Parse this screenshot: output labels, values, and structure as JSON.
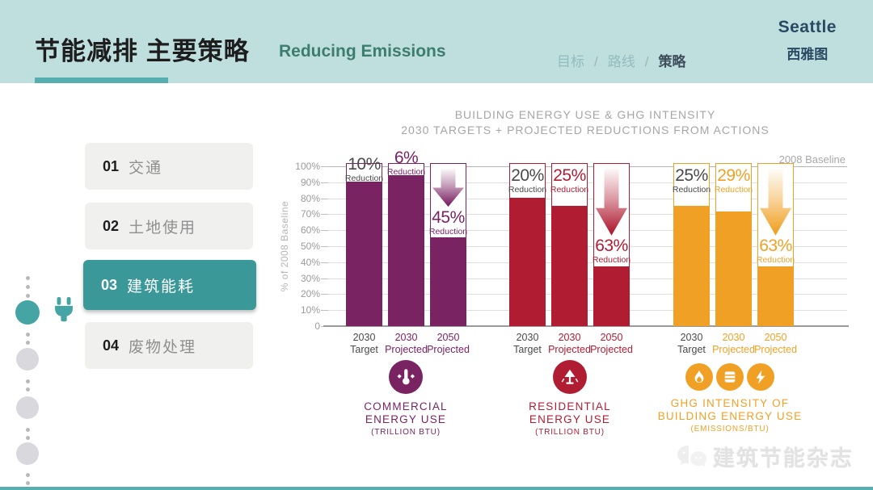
{
  "header": {
    "title_cn": "节能减排 主要策略",
    "title_en": "Reducing Emissions",
    "breadcrumb": [
      {
        "label": "目标",
        "active": false
      },
      {
        "label": "路线",
        "active": false
      },
      {
        "label": "策略",
        "active": true
      }
    ],
    "brand": {
      "name_en": "Seattle",
      "name_cn": "西雅图"
    }
  },
  "sidebar": {
    "items": [
      {
        "num": "01",
        "label": "交通",
        "active": false
      },
      {
        "num": "02",
        "label": "土地使用",
        "active": false
      },
      {
        "num": "03",
        "label": "建筑能耗",
        "active": true
      },
      {
        "num": "04",
        "label": "废物处理",
        "active": false
      }
    ]
  },
  "colors": {
    "header_bg": "#bedfde",
    "accent_teal": "#44a5a4",
    "sidebar_active": "#3a9899",
    "commercial": "#7a2363",
    "residential": "#b01d33",
    "ghg": "#f0a125",
    "dark_label": "#4a4a4c"
  },
  "chart_data": {
    "type": "bar",
    "title_line1": "BUILDING ENERGY USE & GHG INTENSITY",
    "title_line2": "2030 TARGETS + PROJECTED REDUCTIONS FROM ACTIONS",
    "ylabel": "% of 2008 Baseline",
    "baseline_label": "2008 Baseline",
    "reduction_word": "Reduction",
    "ylim": [
      0,
      100
    ],
    "y_ticks": [
      "100%",
      "90%",
      "80%",
      "70%",
      "60%",
      "50%",
      "40%",
      "30%",
      "20%",
      "10%",
      "0"
    ],
    "grid": true,
    "groups": [
      {
        "name": "commercial",
        "color": "#7a2363",
        "legend": [
          "COMMERCIAL",
          "ENERGY USE",
          "(TRILLION BTU)"
        ],
        "icons": [
          "thermometer-icon"
        ],
        "bars": [
          {
            "x1": "2030",
            "x2": "Target",
            "value": 90,
            "reduction": "10%",
            "label_style": "dark",
            "arrow": false
          },
          {
            "x1": "2030",
            "x2": "Projected",
            "value": 94,
            "reduction": "6%",
            "label_style": "color",
            "arrow": false
          },
          {
            "x1": "2050",
            "x2": "Projected",
            "value": 55,
            "reduction": "45%",
            "label_style": "color",
            "arrow": true
          }
        ]
      },
      {
        "name": "residential",
        "color": "#b01d33",
        "legend": [
          "RESIDENTIAL",
          "ENERGY USE",
          "(TRILLION BTU)"
        ],
        "icons": [
          "lamp-icon"
        ],
        "bars": [
          {
            "x1": "2030",
            "x2": "Target",
            "value": 80,
            "reduction": "20%",
            "label_style": "dark",
            "arrow": false
          },
          {
            "x1": "2030",
            "x2": "Projected",
            "value": 75,
            "reduction": "25%",
            "label_style": "color",
            "arrow": false
          },
          {
            "x1": "2050",
            "x2": "Projected",
            "value": 37,
            "reduction": "63%",
            "label_style": "color",
            "arrow": true
          }
        ]
      },
      {
        "name": "ghg",
        "color": "#f0a125",
        "legend": [
          "GHG INTENSITY OF",
          "BUILDING ENERGY USE",
          "(EMISSIONS/BTU)"
        ],
        "icons": [
          "flame-icon",
          "barrel-icon",
          "bolt-icon"
        ],
        "bars": [
          {
            "x1": "2030",
            "x2": "Target",
            "value": 75,
            "reduction": "25%",
            "label_style": "dark",
            "arrow": false
          },
          {
            "x1": "2030",
            "x2": "Projected",
            "value": 71,
            "reduction": "29%",
            "label_style": "color",
            "arrow": false
          },
          {
            "x1": "2050",
            "x2": "Projected",
            "value": 37,
            "reduction": "63%",
            "label_style": "color",
            "arrow": true
          }
        ]
      }
    ]
  },
  "watermark": {
    "text": "建筑节能杂志"
  }
}
